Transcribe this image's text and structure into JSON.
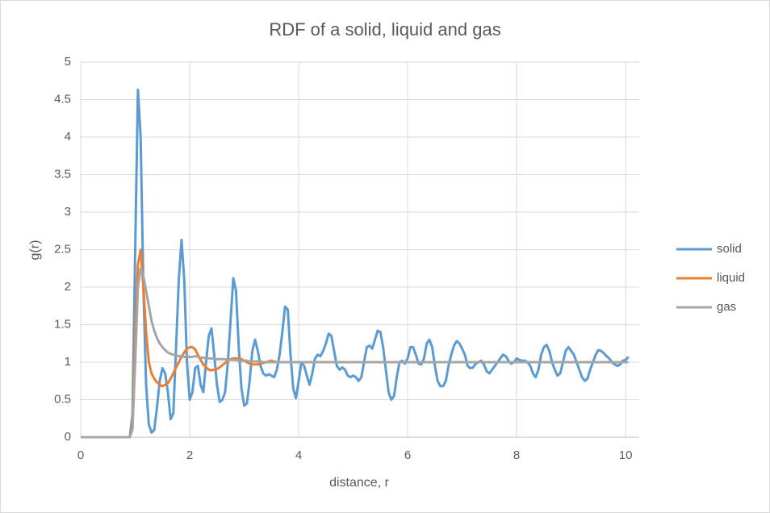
{
  "chart_data": {
    "type": "line",
    "title": "RDF of a solid, liquid and gas",
    "x_label": "distance, r",
    "y_label": "g(r)",
    "xlim": [
      0,
      10.25
    ],
    "ylim": [
      0,
      5
    ],
    "xticks": [
      0,
      2,
      4,
      6,
      8,
      10
    ],
    "yticks": [
      0,
      0.5,
      1,
      1.5,
      2,
      2.5,
      3,
      3.5,
      4,
      4.5,
      5
    ],
    "grid": true,
    "legend": "right",
    "x": [
      0,
      0.05,
      0.1,
      0.15,
      0.2,
      0.25,
      0.3,
      0.35,
      0.4,
      0.45,
      0.5,
      0.55,
      0.6,
      0.65,
      0.7,
      0.75,
      0.8,
      0.85,
      0.9,
      0.95,
      1,
      1.05,
      1.1,
      1.15,
      1.2,
      1.25,
      1.3,
      1.35,
      1.4,
      1.45,
      1.5,
      1.55,
      1.6,
      1.65,
      1.7,
      1.75,
      1.8,
      1.85,
      1.9,
      1.95,
      2,
      2.05,
      2.1,
      2.15,
      2.2,
      2.25,
      2.3,
      2.35,
      2.4,
      2.45,
      2.5,
      2.55,
      2.6,
      2.65,
      2.7,
      2.75,
      2.8,
      2.85,
      2.9,
      2.95,
      3,
      3.05,
      3.1,
      3.15,
      3.2,
      3.25,
      3.3,
      3.35,
      3.4,
      3.45,
      3.5,
      3.55,
      3.6,
      3.65,
      3.7,
      3.75,
      3.8,
      3.85,
      3.9,
      3.95,
      4,
      4.05,
      4.1,
      4.15,
      4.2,
      4.25,
      4.3,
      4.35,
      4.4,
      4.45,
      4.5,
      4.55,
      4.6,
      4.65,
      4.7,
      4.75,
      4.8,
      4.85,
      4.9,
      4.95,
      5,
      5.05,
      5.1,
      5.15,
      5.2,
      5.25,
      5.3,
      5.35,
      5.4,
      5.45,
      5.5,
      5.55,
      5.6,
      5.65,
      5.7,
      5.75,
      5.8,
      5.85,
      5.9,
      5.95,
      6,
      6.05,
      6.1,
      6.15,
      6.2,
      6.25,
      6.3,
      6.35,
      6.4,
      6.45,
      6.5,
      6.55,
      6.6,
      6.65,
      6.7,
      6.75,
      6.8,
      6.85,
      6.9,
      6.95,
      7,
      7.05,
      7.1,
      7.15,
      7.2,
      7.25,
      7.3,
      7.35,
      7.4,
      7.45,
      7.5,
      7.55,
      7.6,
      7.65,
      7.7,
      7.75,
      7.8,
      7.85,
      7.9,
      7.95,
      8,
      8.05,
      8.1,
      8.15,
      8.2,
      8.25,
      8.3,
      8.35,
      8.4,
      8.45,
      8.5,
      8.55,
      8.6,
      8.65,
      8.7,
      8.75,
      8.8,
      8.85,
      8.9,
      8.95,
      9,
      9.05,
      9.1,
      9.15,
      9.2,
      9.25,
      9.3,
      9.35,
      9.4,
      9.45,
      9.5,
      9.55,
      9.6,
      9.65,
      9.7,
      9.75,
      9.8,
      9.85,
      9.9,
      9.95,
      10,
      10.05
    ],
    "series": [
      {
        "name": "solid",
        "color": "#5b9bd5",
        "values": [
          0,
          0,
          0,
          0,
          0,
          0,
          0,
          0,
          0,
          0,
          0,
          0,
          0,
          0,
          0,
          0,
          0,
          0,
          0,
          0.3,
          2.5,
          4.63,
          4.0,
          2.0,
          0.7,
          0.17,
          0.06,
          0.1,
          0.4,
          0.75,
          0.92,
          0.85,
          0.6,
          0.24,
          0.32,
          1.2,
          2.1,
          2.63,
          2.1,
          1.0,
          0.5,
          0.6,
          0.92,
          0.95,
          0.7,
          0.6,
          1.0,
          1.35,
          1.45,
          1.1,
          0.7,
          0.47,
          0.5,
          0.6,
          1.0,
          1.55,
          2.12,
          1.95,
          1.2,
          0.65,
          0.42,
          0.45,
          0.75,
          1.15,
          1.3,
          1.15,
          0.95,
          0.85,
          0.82,
          0.84,
          0.82,
          0.8,
          0.9,
          1.1,
          1.4,
          1.74,
          1.7,
          1.1,
          0.65,
          0.52,
          0.75,
          1.0,
          0.95,
          0.82,
          0.7,
          0.85,
          1.05,
          1.1,
          1.08,
          1.15,
          1.25,
          1.38,
          1.35,
          1.15,
          0.95,
          0.9,
          0.93,
          0.9,
          0.82,
          0.8,
          0.82,
          0.8,
          0.75,
          0.8,
          1.0,
          1.2,
          1.22,
          1.18,
          1.3,
          1.42,
          1.4,
          1.2,
          0.9,
          0.6,
          0.5,
          0.55,
          0.8,
          1.0,
          1.02,
          0.98,
          1.05,
          1.2,
          1.2,
          1.1,
          0.98,
          0.97,
          1.05,
          1.25,
          1.3,
          1.2,
          0.95,
          0.75,
          0.68,
          0.68,
          0.75,
          0.95,
          1.1,
          1.22,
          1.28,
          1.25,
          1.18,
          1.1,
          0.95,
          0.92,
          0.93,
          0.98,
          1.0,
          1.02,
          0.97,
          0.88,
          0.85,
          0.9,
          0.95,
          1.0,
          1.05,
          1.1,
          1.08,
          1.02,
          0.98,
          1.0,
          1.05,
          1.03,
          1.02,
          1.02,
          1.0,
          0.95,
          0.85,
          0.8,
          0.9,
          1.1,
          1.2,
          1.23,
          1.15,
          1.0,
          0.9,
          0.82,
          0.85,
          1.0,
          1.15,
          1.2,
          1.15,
          1.1,
          1.0,
          0.9,
          0.8,
          0.75,
          0.78,
          0.9,
          1.0,
          1.1,
          1.16,
          1.15,
          1.12,
          1.08,
          1.05,
          1.0,
          0.97,
          0.95,
          0.97,
          1.02,
          1.03,
          1.07
        ]
      },
      {
        "name": "liquid",
        "color": "#ed7d31",
        "values": [
          0,
          0,
          0,
          0,
          0,
          0,
          0,
          0,
          0,
          0,
          0,
          0,
          0,
          0,
          0,
          0,
          0,
          0,
          0,
          0.15,
          1.4,
          2.3,
          2.5,
          2.0,
          1.4,
          1.0,
          0.85,
          0.78,
          0.73,
          0.7,
          0.68,
          0.7,
          0.72,
          0.78,
          0.85,
          0.93,
          1.0,
          1.07,
          1.13,
          1.18,
          1.2,
          1.2,
          1.17,
          1.1,
          1.03,
          0.97,
          0.93,
          0.9,
          0.89,
          0.9,
          0.91,
          0.93,
          0.96,
          0.99,
          1.02,
          1.04,
          1.05,
          1.05,
          1.05,
          1.04,
          1.02,
          1.0,
          0.98,
          0.97,
          0.97,
          0.97,
          0.98,
          0.99,
          1.0,
          1.01,
          1.02,
          1.01,
          1,
          1,
          1,
          1,
          1,
          1,
          1,
          1,
          1,
          1,
          1,
          1,
          1,
          1,
          1,
          1,
          1,
          1,
          1,
          1,
          1,
          1,
          1,
          1,
          1,
          1,
          1,
          1,
          1,
          1,
          1,
          1,
          1,
          1,
          1,
          1,
          1,
          1,
          1,
          1,
          1,
          1,
          1,
          1,
          1,
          1,
          1,
          1,
          1,
          1,
          1,
          1,
          1,
          1,
          1,
          1,
          1,
          1,
          1,
          1,
          1,
          1,
          1,
          1,
          1,
          1,
          1,
          1,
          1,
          1,
          1,
          1,
          1,
          1,
          1,
          1,
          1,
          1,
          1,
          1,
          1,
          1,
          1,
          1,
          1,
          1,
          1,
          1,
          1,
          1,
          1,
          1,
          1,
          1,
          1,
          1,
          1,
          1,
          1,
          1,
          1,
          1,
          1,
          1,
          1,
          1,
          1,
          1,
          1,
          1,
          1,
          1,
          1,
          1,
          1,
          1,
          1,
          1,
          1,
          1,
          1,
          1,
          1,
          1,
          1,
          1,
          1,
          1,
          1,
          1
        ]
      },
      {
        "name": "gas",
        "color": "#a5a5a5",
        "values": [
          0,
          0,
          0,
          0,
          0,
          0,
          0,
          0,
          0,
          0,
          0,
          0,
          0,
          0,
          0,
          0,
          0,
          0,
          0,
          0.1,
          1.0,
          2.0,
          2.25,
          2.15,
          1.95,
          1.75,
          1.55,
          1.42,
          1.32,
          1.25,
          1.2,
          1.16,
          1.13,
          1.11,
          1.1,
          1.09,
          1.08,
          1.08,
          1.07,
          1.07,
          1.07,
          1.07,
          1.08,
          1.07,
          1.06,
          1.06,
          1.05,
          1.05,
          1.05,
          1.05,
          1.04,
          1.04,
          1.04,
          1.04,
          1.03,
          1.03,
          1.03,
          1.03,
          1.02,
          1.02,
          1.02,
          1.02,
          1.01,
          1.01,
          1.01,
          1.01,
          1.01,
          1,
          1,
          1,
          1,
          1,
          1,
          1,
          1,
          1,
          1,
          1,
          1,
          1,
          1,
          1,
          1,
          1,
          1,
          1,
          1,
          1,
          1,
          1,
          1,
          1,
          1,
          1,
          1,
          1,
          1,
          1,
          1,
          1,
          1,
          1,
          1,
          1,
          1,
          1,
          1,
          1,
          1,
          1,
          1,
          1,
          1,
          1,
          1,
          1,
          1,
          1,
          1,
          1,
          1,
          1,
          1,
          1,
          1,
          1,
          1,
          1,
          1,
          1,
          1,
          1,
          1,
          1,
          1,
          1,
          1,
          1,
          1,
          1,
          1,
          1,
          1,
          1,
          1,
          1,
          1,
          1,
          1,
          1,
          1,
          1,
          1,
          1,
          1,
          1,
          1,
          1,
          1,
          1,
          1,
          1,
          1,
          1,
          1,
          1,
          1,
          1,
          1,
          1,
          1,
          1,
          1,
          1,
          1,
          1,
          1,
          1,
          1,
          1,
          1,
          1,
          1,
          1,
          1,
          1,
          1,
          1,
          1,
          1,
          1,
          1,
          1,
          1,
          1,
          1,
          1,
          1,
          1,
          1,
          1,
          1
        ]
      }
    ]
  }
}
